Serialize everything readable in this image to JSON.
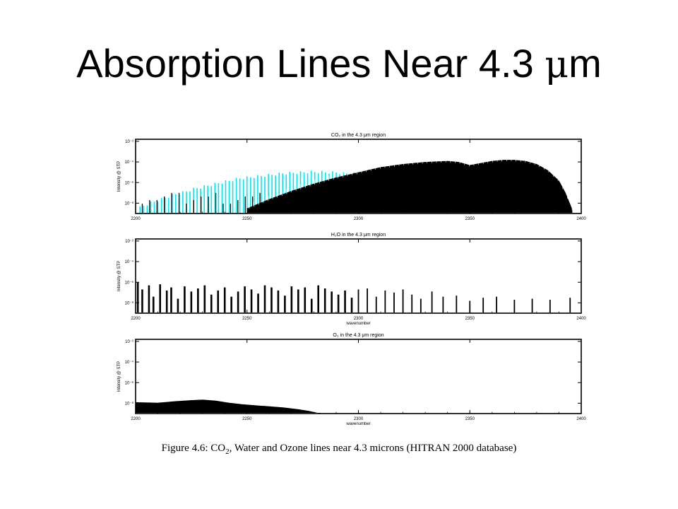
{
  "slide": {
    "title_main": "Absorption Lines Near 4.3 ",
    "title_mu": "μ",
    "title_unit": "m"
  },
  "caption": {
    "prefix": "Figure 4.6: CO",
    "sub": "2",
    "suffix": ", Water and Ozone lines near 4.3 microns (HITRAN 2000 database)"
  },
  "colors": {
    "co2_isotope": "#00e5ee",
    "line": "#000000"
  },
  "chart_data": [
    {
      "type": "bar",
      "title": "CO₂ in the 4.3 μm region",
      "xlabel": "",
      "ylabel": "Intensity @ STP",
      "xlim": [
        2200,
        2400
      ],
      "xticks": [
        2200,
        2250,
        2300,
        2350,
        2400
      ],
      "yscale": "log",
      "yticks": [
        "10⁻²",
        "10⁻⁴",
        "10⁻⁶",
        "10⁻⁸"
      ],
      "series": [
        {
          "color": "#00e5ee",
          "x": [
            2202,
            2206,
            2210,
            2214,
            2218,
            2222,
            2226,
            2230,
            2234,
            2238,
            2242,
            2246,
            2250,
            2254,
            2258,
            2262,
            2266,
            2270,
            2274,
            2278,
            2282,
            2286,
            2290,
            2294,
            2298,
            2302,
            2306,
            2310,
            2314,
            2318,
            2322
          ],
          "envelope_log10": [
            -8.3,
            -7.9,
            -7.6,
            -7.3,
            -7.0,
            -6.8,
            -6.5,
            -6.3,
            -6.1,
            -5.9,
            -5.7,
            -5.5,
            -5.4,
            -5.3,
            -5.2,
            -5.1,
            -5.0,
            -4.95,
            -4.9,
            -4.85,
            -4.85,
            -4.9,
            -4.9,
            -5.0,
            -5.0,
            -5.1,
            -5.2,
            -5.4,
            -5.7,
            -6.1,
            -6.6
          ]
        },
        {
          "color": "#000000",
          "x": [
            2250,
            2260,
            2270,
            2280,
            2290,
            2300,
            2310,
            2320,
            2330,
            2340,
            2345,
            2350,
            2355,
            2360,
            2365,
            2370,
            2375,
            2380,
            2385,
            2390,
            2393,
            2396
          ],
          "envelope_log10": [
            -8.5,
            -7.6,
            -6.8,
            -6.1,
            -5.5,
            -5.0,
            -4.5,
            -4.2,
            -4.0,
            -3.9,
            -4.0,
            -4.3,
            -4.1,
            -3.9,
            -3.8,
            -3.8,
            -3.9,
            -4.2,
            -4.8,
            -5.8,
            -7.0,
            -8.6
          ]
        }
      ]
    },
    {
      "type": "bar",
      "title": "H₂O in the 4.3 μm region",
      "xlabel": "wavenumber",
      "ylabel": "Intensity @ STP",
      "xlim": [
        2200,
        2400
      ],
      "xticks": [
        2200,
        2250,
        2300,
        2350,
        2400
      ],
      "yscale": "log",
      "yticks": [
        "10⁻²",
        "10⁻⁴",
        "10⁻⁶",
        "10⁻⁸"
      ],
      "series": [
        {
          "color": "#000000",
          "x": [
            2201,
            2203,
            2206,
            2208,
            2211,
            2214,
            2216,
            2219,
            2222,
            2225,
            2228,
            2231,
            2234,
            2237,
            2240,
            2243,
            2246,
            2249,
            2252,
            2255,
            2258,
            2261,
            2264,
            2267,
            2270,
            2273,
            2276,
            2279,
            2282,
            2285,
            2288,
            2291,
            2294,
            2297,
            2300,
            2304,
            2308,
            2312,
            2316,
            2320,
            2324,
            2328,
            2333,
            2338,
            2344,
            2350,
            2356,
            2362,
            2370,
            2378,
            2386,
            2395
          ],
          "log10_intensity": [
            -6.0,
            -6.7,
            -6.3,
            -7.4,
            -6.2,
            -6.8,
            -6.5,
            -7.6,
            -6.4,
            -6.9,
            -6.6,
            -6.3,
            -7.2,
            -6.8,
            -6.5,
            -7.4,
            -6.9,
            -6.4,
            -6.7,
            -7.1,
            -6.3,
            -6.5,
            -6.8,
            -7.3,
            -6.4,
            -6.7,
            -6.5,
            -7.6,
            -6.3,
            -6.6,
            -6.9,
            -7.2,
            -6.8,
            -7.5,
            -6.7,
            -6.6,
            -7.4,
            -6.8,
            -7.0,
            -6.7,
            -7.2,
            -7.6,
            -6.9,
            -7.4,
            -7.3,
            -7.8,
            -7.5,
            -7.4,
            -7.7,
            -7.6,
            -7.7,
            -7.5
          ]
        }
      ]
    },
    {
      "type": "bar",
      "title": "O₃ in the 4.3 μm region",
      "xlabel": "wavenumber",
      "ylabel": "Intensity @ STP",
      "xlim": [
        2200,
        2400
      ],
      "xticks": [
        2200,
        2250,
        2300,
        2350,
        2400
      ],
      "yscale": "log",
      "yticks": [
        "10⁻²",
        "10⁻⁴",
        "10⁻⁶",
        "10⁻⁸"
      ],
      "series": [
        {
          "color": "#000000",
          "x": [
            2200,
            2210,
            2218,
            2225,
            2230,
            2236,
            2242,
            2248,
            2254,
            2260,
            2266,
            2272,
            2278,
            2283
          ],
          "envelope_log10": [
            -7.9,
            -7.95,
            -7.8,
            -7.7,
            -7.65,
            -7.75,
            -7.95,
            -8.1,
            -8.2,
            -8.3,
            -8.4,
            -8.55,
            -8.75,
            -9.0
          ]
        }
      ]
    }
  ]
}
